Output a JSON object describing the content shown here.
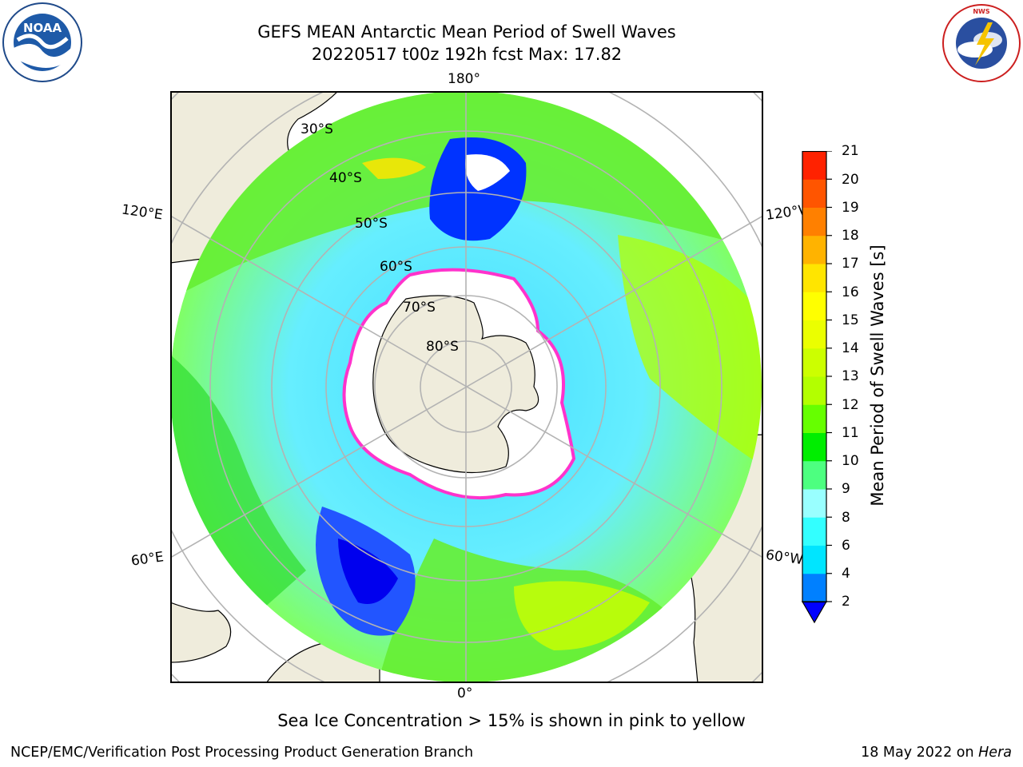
{
  "header": {
    "title_line1": "GEFS MEAN Antarctic Mean Period of Swell Waves",
    "title_line2": "20220517 t00z 192h fcst   Max: 17.82"
  },
  "logos": {
    "left": "noaa-logo",
    "right": "national-weather-service-logo",
    "left_text": "NOAA",
    "left_ring_text": "NATIONAL OCEANIC AND ATMOSPHERIC ADMINISTRATION · U.S. DEPARTMENT OF COMMERCE",
    "right_ring_text": "NATIONAL WEATHER SERVICE"
  },
  "map": {
    "projection": "south-polar-stereographic",
    "longitude_labels": {
      "top": "180°",
      "bottom": "0°",
      "left_upper": "120°E",
      "left_lower": "60°E",
      "right_upper": "120°W",
      "right_lower": "60°W"
    },
    "latitude_labels": [
      "30°S",
      "40°S",
      "50°S",
      "60°S",
      "70°S",
      "80°S"
    ],
    "land_color": "#efecdc",
    "ice_color": "#ffffff",
    "ice_edge_color": "#ff33cc"
  },
  "colorbar": {
    "label": "Mean Period of Swell Waves [s]",
    "ticks": [
      "2",
      "4",
      "6",
      "8",
      "9",
      "10",
      "11",
      "12",
      "13",
      "14",
      "15",
      "16",
      "17",
      "18",
      "19",
      "20",
      "21"
    ],
    "colors": [
      "#0080ff",
      "#00e5ff",
      "#33ffff",
      "#99ffff",
      "#4dff80",
      "#00ee00",
      "#66ff00",
      "#b3ff00",
      "#ccff00",
      "#ebff00",
      "#ffff00",
      "#ffe500",
      "#ffb300",
      "#ff8000",
      "#ff5500",
      "#ff2200"
    ],
    "extend_low_color": "#0000ff"
  },
  "caption": "Sea Ice Concentration > 15% is shown in pink to yellow",
  "footer": {
    "left": "NCEP/EMC/Verification Post Processing Product Generation Branch",
    "right_prefix": "18 May 2022 on ",
    "right_system": "Hera"
  }
}
